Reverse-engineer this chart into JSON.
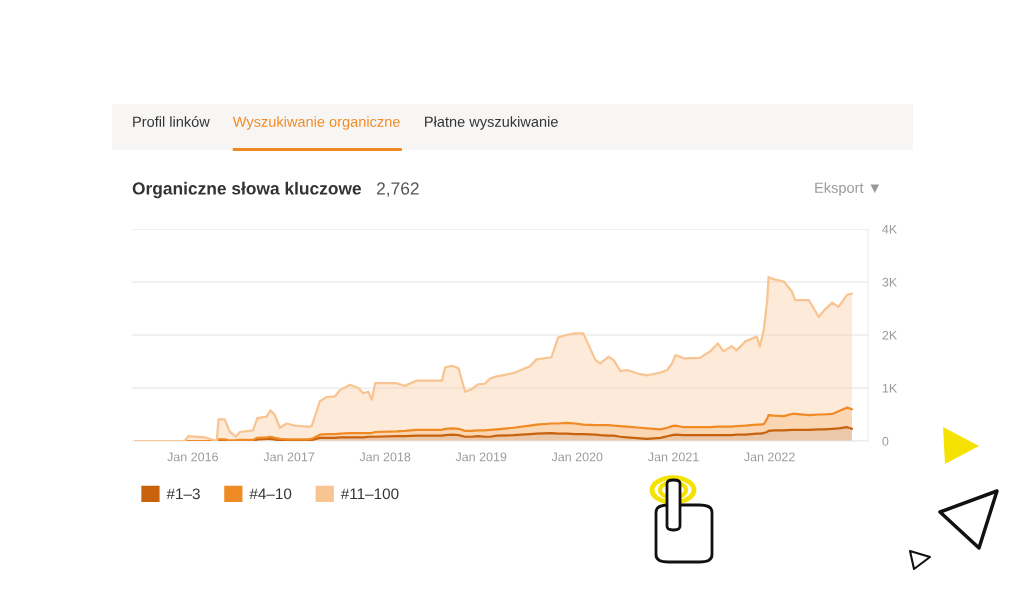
{
  "chart_data": {
    "type": "area",
    "title": "Organiczne słowa kluczowe",
    "subtitle": "2,762",
    "annotations": [
      "Profil linków",
      "Wyszukiwanie organiczne",
      "Płatne wyszukiwanie",
      "Eksport ▼"
    ],
    "stacked": true,
    "grid": "y",
    "legend": "bottom left",
    "xlim": [
      "2015-05-15",
      "2023-01-10"
    ],
    "ylim": [
      0,
      4000
    ],
    "xticks": [
      {
        "value": "2016-01",
        "label": "Jan 2016"
      },
      {
        "value": "2017-01",
        "label": "Jan 2017"
      },
      {
        "value": "2018-01",
        "label": "Jan 2018"
      },
      {
        "value": "2019-01",
        "label": "Jan 2019"
      },
      {
        "value": "2020-01",
        "label": "Jan 2020"
      },
      {
        "value": "2021-01",
        "label": "Jan 2021"
      },
      {
        "value": "2022-01",
        "label": "Jan 2022"
      }
    ],
    "yticks": [
      0,
      {
        "value": 1000,
        "label": "1K"
      },
      {
        "value": 2000,
        "label": "2K"
      },
      {
        "value": 3000,
        "label": "3K"
      },
      {
        "value": 4000,
        "label": "4K"
      }
    ],
    "x": [
      "2015-06-01",
      "2015-12-01",
      "2015-12-15",
      "2016-02-15",
      "2016-04-01",
      "2016-04-08",
      "2016-05-01",
      "2016-05-20",
      "2016-06-12",
      "2016-06-28",
      "2016-08-17",
      "2016-09-02",
      "2016-10-08",
      "2016-10-22",
      "2016-11-07",
      "2016-11-27",
      "2016-12-22",
      "2017-01-23",
      "2017-03-15",
      "2017-03-28",
      "2017-04-28",
      "2017-05-24",
      "2017-06-24",
      "2017-07-13",
      "2017-08-20",
      "2017-09-21",
      "2017-10-10",
      "2017-10-29",
      "2017-11-11",
      "2017-11-24",
      "2018-02-14",
      "2018-03-17",
      "2018-05-01",
      "2018-08-05",
      "2018-08-17",
      "2018-09-12",
      "2018-10-07",
      "2018-11-01",
      "2018-11-26",
      "2018-12-20",
      "2019-01-15",
      "2019-02-04",
      "2019-03-01",
      "2019-05-03",
      "2019-07-05",
      "2019-07-30",
      "2019-09-25",
      "2019-10-20",
      "2019-11-20",
      "2019-12-24",
      "2020-01-24",
      "2020-03-10",
      "2020-03-28",
      "2020-04-28",
      "2020-05-18",
      "2020-06-13",
      "2020-07-08",
      "2020-08-27",
      "2020-09-23",
      "2020-11-12",
      "2020-12-08",
      "2020-12-27",
      "2021-01-08",
      "2021-02-09",
      "2021-04-12",
      "2021-05-20",
      "2021-06-18",
      "2021-07-10",
      "2021-08-10",
      "2021-08-29",
      "2021-10-01",
      "2021-11-14",
      "2021-11-25",
      "2021-12-10",
      "2021-12-23",
      "2021-12-28",
      "2022-01-18",
      "2022-02-24",
      "2022-03-27",
      "2022-04-08",
      "2022-05-30",
      "2022-07-07",
      "2022-07-26",
      "2022-08-27",
      "2022-09-20",
      "2022-10-23",
      "2022-11-10"
    ],
    "series": [
      {
        "name": "#1–3",
        "color": "#c8620c",
        "values": [
          0,
          0,
          0,
          0,
          0,
          0,
          0,
          0,
          0,
          0,
          0,
          30,
          40,
          40,
          30,
          10,
          10,
          10,
          10,
          20,
          60,
          60,
          60,
          70,
          70,
          70,
          70,
          80,
          80,
          80,
          90,
          90,
          100,
          100,
          110,
          120,
          110,
          80,
          80,
          90,
          80,
          80,
          100,
          110,
          130,
          140,
          150,
          140,
          140,
          130,
          130,
          120,
          110,
          100,
          100,
          80,
          70,
          50,
          40,
          60,
          90,
          110,
          120,
          110,
          110,
          110,
          110,
          110,
          110,
          120,
          120,
          140,
          140,
          150,
          170,
          190,
          200,
          200,
          210,
          210,
          210,
          220,
          220,
          230,
          240,
          260,
          230
        ]
      },
      {
        "name": "#4–10",
        "color": "#f08a24",
        "values": [
          0,
          0,
          0,
          0,
          0,
          30,
          30,
          10,
          10,
          20,
          20,
          30,
          30,
          40,
          30,
          30,
          20,
          20,
          20,
          20,
          60,
          70,
          70,
          70,
          80,
          80,
          80,
          70,
          70,
          90,
          90,
          100,
          110,
          110,
          120,
          120,
          120,
          110,
          110,
          110,
          120,
          130,
          120,
          140,
          160,
          170,
          180,
          190,
          200,
          200,
          180,
          180,
          190,
          200,
          190,
          200,
          200,
          200,
          200,
          160,
          160,
          170,
          170,
          150,
          150,
          150,
          160,
          160,
          160,
          160,
          170,
          170,
          170,
          170,
          250,
          300,
          280,
          270,
          300,
          300,
          280,
          280,
          280,
          280,
          320,
          370,
          370
        ]
      },
      {
        "name": "#11–100",
        "color": "#f8c491",
        "values": [
          0,
          0,
          90,
          70,
          0,
          380,
          380,
          170,
          70,
          150,
          180,
          370,
          390,
          500,
          440,
          210,
          300,
          260,
          240,
          240,
          630,
          700,
          710,
          820,
          910,
          850,
          750,
          780,
          630,
          920,
          910,
          850,
          930,
          930,
          1160,
          1180,
          1140,
          740,
          790,
          870,
          880,
          970,
          1000,
          1030,
          1120,
          1230,
          1250,
          1620,
          1660,
          1700,
          1720,
          1230,
          1160,
          1290,
          1240,
          1040,
          1070,
          1010,
          1000,
          1070,
          1090,
          1190,
          1330,
          1300,
          1310,
          1430,
          1570,
          1420,
          1520,
          1430,
          1590,
          1660,
          1470,
          1780,
          2240,
          2600,
          2570,
          2540,
          2310,
          2150,
          2170,
          1840,
          1960,
          2100,
          1970,
          2130,
          2180
        ]
      }
    ]
  }
}
